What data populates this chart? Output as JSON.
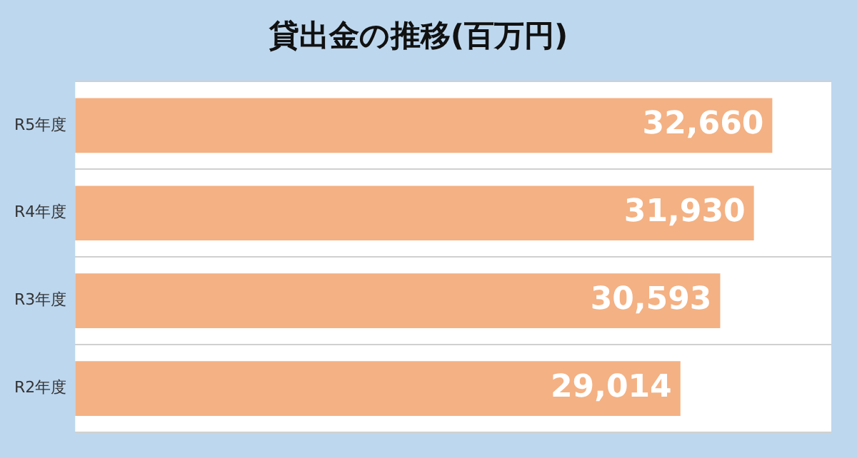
{
  "chart_data": {
    "type": "bar",
    "orientation": "horizontal",
    "title": "貸出金の推移(百万円)",
    "categories": [
      "R5年度",
      "R4年度",
      "R3年度",
      "R2年度"
    ],
    "values": [
      32660,
      31930,
      30593,
      29014
    ],
    "value_labels": [
      "32,660",
      "31,930",
      "30,593",
      "29,014"
    ],
    "color": "#f4b183",
    "xlim": [
      5000,
      35000
    ],
    "tick_labels": "y",
    "grid": "y",
    "legend": false
  }
}
